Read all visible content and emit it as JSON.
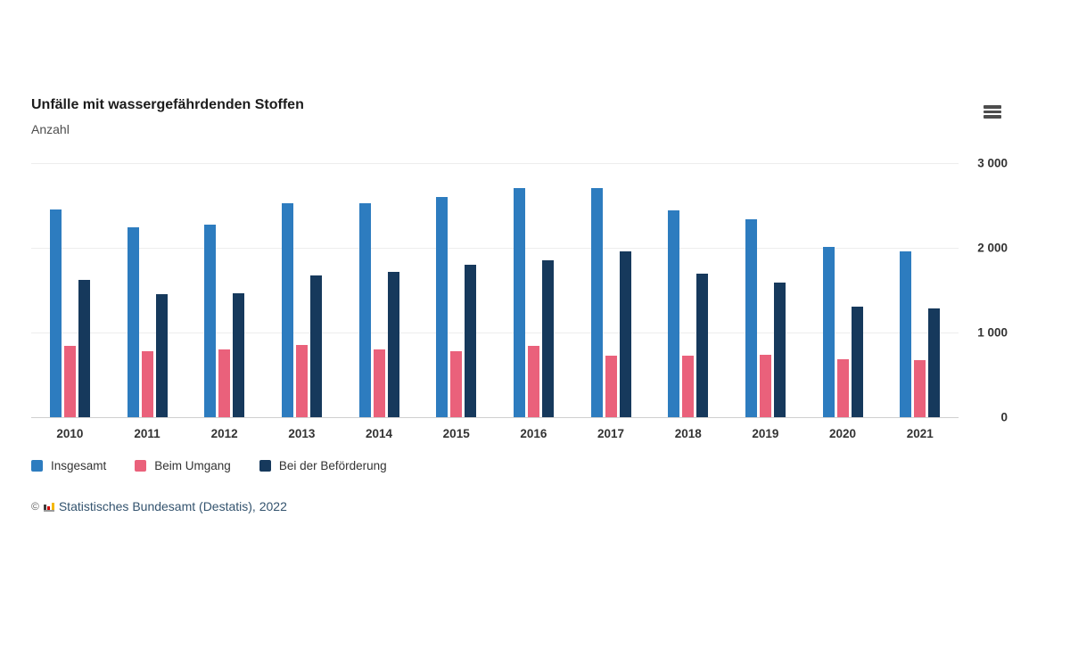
{
  "header": {
    "title": "Unfälle mit wassergefährdenden Stoffen",
    "subtitle": "Anzahl"
  },
  "icons": {
    "menu": "hamburger-menu (three horizontal bars)",
    "destatis_logo": "mini-bar-chart in black/red/gold"
  },
  "chart_data": {
    "type": "bar",
    "title": "Unfälle mit wassergefährdenden Stoffen",
    "ylabel": "Anzahl",
    "categories": [
      "2010",
      "2011",
      "2012",
      "2013",
      "2014",
      "2015",
      "2016",
      "2017",
      "2018",
      "2019",
      "2020",
      "2021"
    ],
    "series": [
      {
        "name": "Insgesamt",
        "color": "#2d7cbf",
        "values": [
          2450,
          2240,
          2270,
          2530,
          2530,
          2600,
          2710,
          2710,
          2440,
          2340,
          2010,
          1960
        ]
      },
      {
        "name": "Beim Umgang",
        "color": "#ea617b",
        "values": [
          840,
          780,
          800,
          850,
          800,
          780,
          840,
          730,
          730,
          740,
          680,
          670
        ]
      },
      {
        "name": "Bei der Beförderung",
        "color": "#16395c",
        "values": [
          1620,
          1450,
          1460,
          1670,
          1720,
          1800,
          1850,
          1960,
          1690,
          1590,
          1310,
          1280
        ]
      }
    ],
    "ylim": [
      0,
      3000
    ],
    "yticks": [
      "3 000",
      "2 000",
      "1 000",
      "0"
    ],
    "grid": true,
    "axis_side": "right",
    "legend_position": "bottom"
  },
  "footer": {
    "copyright": "©",
    "source": "Statistisches Bundesamt (Destatis), 2022"
  }
}
